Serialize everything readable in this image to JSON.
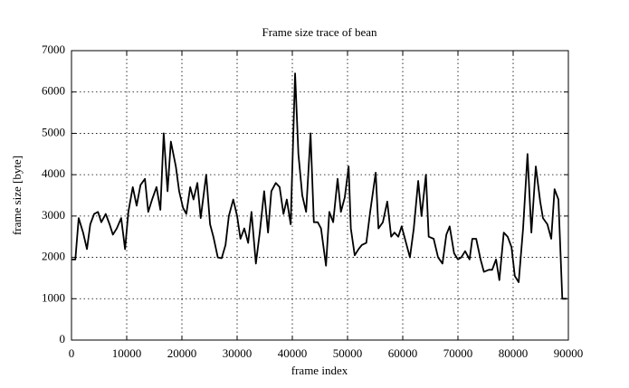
{
  "chart_data": {
    "type": "line",
    "title": "Frame size trace of bean",
    "xlabel": "frame index",
    "ylabel": "frame size [byte]",
    "color": "#000000",
    "grid": true,
    "xlim": [
      0,
      90000
    ],
    "ylim": [
      0,
      7000
    ],
    "xticks": [
      0,
      10000,
      20000,
      30000,
      40000,
      50000,
      60000,
      70000,
      80000,
      90000
    ],
    "yticks": [
      0,
      1000,
      2000,
      3000,
      4000,
      5000,
      6000,
      7000
    ],
    "x": [
      0,
      700,
      1300,
      2100,
      2800,
      3400,
      4100,
      4800,
      5400,
      6200,
      6900,
      7500,
      8200,
      9000,
      9700,
      10300,
      11100,
      11800,
      12500,
      13300,
      13900,
      14600,
      15400,
      16100,
      16700,
      17400,
      18000,
      18900,
      19500,
      20200,
      20800,
      21500,
      22100,
      22800,
      23400,
      24400,
      25100,
      25700,
      26500,
      27200,
      27900,
      28500,
      29300,
      30000,
      30600,
      31300,
      32000,
      32600,
      33400,
      34100,
      34900,
      35600,
      36200,
      37000,
      37700,
      38400,
      39000,
      39700,
      40500,
      41100,
      41800,
      42500,
      43300,
      43900,
      44600,
      45200,
      46100,
      46700,
      47400,
      48200,
      48800,
      49500,
      50200,
      50600,
      51300,
      52000,
      52600,
      53400,
      54100,
      55100,
      55600,
      56400,
      57200,
      57900,
      58500,
      59200,
      59800,
      60500,
      61300,
      62000,
      62800,
      63400,
      64200,
      64700,
      65600,
      66400,
      67200,
      67900,
      68500,
      69300,
      70000,
      70600,
      71300,
      72100,
      72600,
      73300,
      74100,
      74700,
      75600,
      76200,
      76900,
      77500,
      78300,
      79000,
      79700,
      80300,
      81000,
      81800,
      82600,
      83300,
      84100,
      84900,
      85400,
      86200,
      86900,
      87500,
      88200,
      88900,
      89700
    ],
    "values": [
      1950,
      1950,
      2950,
      2600,
      2200,
      2800,
      3050,
      3100,
      2850,
      3050,
      2800,
      2550,
      2700,
      2950,
      2200,
      3100,
      3700,
      3250,
      3750,
      3900,
      3100,
      3400,
      3700,
      3150,
      5000,
      3600,
      4800,
      4200,
      3600,
      3200,
      3050,
      3700,
      3400,
      3800,
      2950,
      4000,
      2800,
      2500,
      2000,
      1980,
      2300,
      3000,
      3400,
      3000,
      2450,
      2700,
      2350,
      3100,
      1850,
      2600,
      3600,
      2600,
      3600,
      3800,
      3700,
      3050,
      3400,
      2800,
      6450,
      4500,
      3500,
      3100,
      5000,
      2850,
      2850,
      2700,
      1800,
      3100,
      2850,
      3900,
      3100,
      3450,
      4200,
      2700,
      2050,
      2200,
      2300,
      2350,
      3100,
      4050,
      2700,
      2850,
      3350,
      2500,
      2600,
      2500,
      2750,
      2400,
      2000,
      2700,
      3850,
      3000,
      4000,
      2500,
      2450,
      2000,
      1850,
      2550,
      2750,
      2100,
      1950,
      2000,
      2150,
      1950,
      2450,
      2450,
      1950,
      1650,
      1700,
      1700,
      1950,
      1450,
      2600,
      2500,
      2250,
      1550,
      1400,
      2700,
      4500,
      2600,
      4200,
      3350,
      2950,
      2800,
      2450,
      3650,
      3400,
      1000,
      1000
    ]
  }
}
